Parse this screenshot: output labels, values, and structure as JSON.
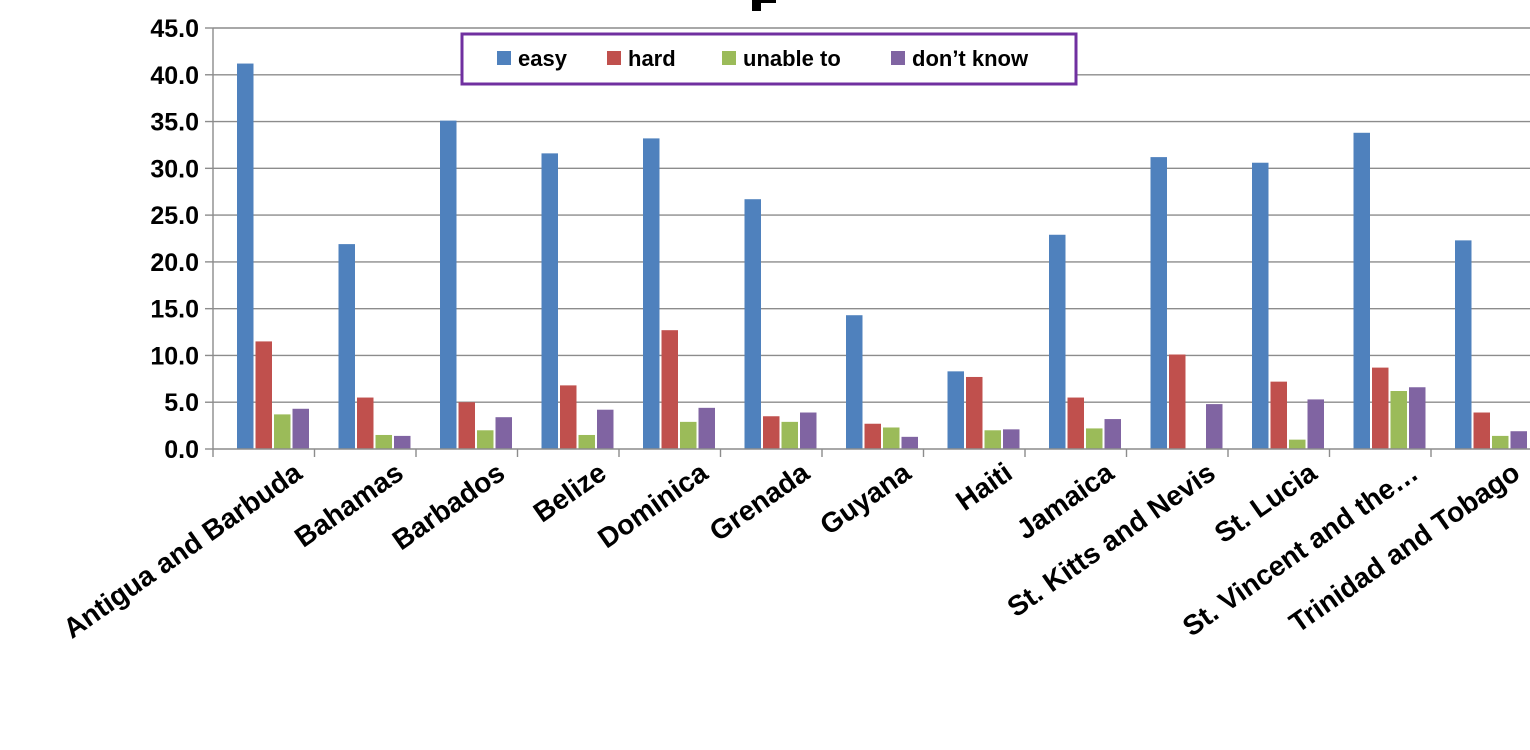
{
  "chart_data": {
    "type": "bar",
    "categories": [
      "Antigua and Barbuda",
      "Bahamas",
      "Barbados",
      "Belize",
      "Dominica",
      "Grenada",
      "Guyana",
      "Haiti",
      "Jamaica",
      "St. Kitts and Nevis",
      "St. Lucia",
      "St. Vincent and the…",
      "Trinidad and Tobago"
    ],
    "series": [
      {
        "name": "easy",
        "color": "#4F81BD",
        "values": [
          41.2,
          21.9,
          35.1,
          31.6,
          33.2,
          26.7,
          14.3,
          8.3,
          22.9,
          31.2,
          30.6,
          33.8,
          22.3
        ]
      },
      {
        "name": "hard",
        "color": "#C0504D",
        "values": [
          11.5,
          5.5,
          5.0,
          6.8,
          12.7,
          3.5,
          2.7,
          7.7,
          5.5,
          10.1,
          7.2,
          8.7,
          3.9
        ]
      },
      {
        "name": "unable to",
        "color": "#9BBB59",
        "values": [
          3.7,
          1.5,
          2.0,
          1.5,
          2.9,
          2.9,
          2.3,
          2.0,
          2.2,
          0.0,
          1.0,
          6.2,
          1.4
        ]
      },
      {
        "name": "don’t know",
        "color": "#8064A2",
        "values": [
          4.3,
          1.4,
          3.4,
          4.2,
          4.4,
          3.9,
          1.3,
          2.1,
          3.2,
          4.8,
          5.3,
          6.6,
          1.9
        ]
      }
    ],
    "title": "",
    "xlabel": "",
    "ylabel": "",
    "ylim": [
      0,
      45
    ],
    "yticks": [
      "0.0",
      "5.0",
      "10.0",
      "15.0",
      "20.0",
      "25.0",
      "30.0",
      "35.0",
      "40.0",
      "45.0"
    ],
    "grid": true,
    "legend_position": "top-center",
    "legend_border_color": "#7030A0"
  }
}
